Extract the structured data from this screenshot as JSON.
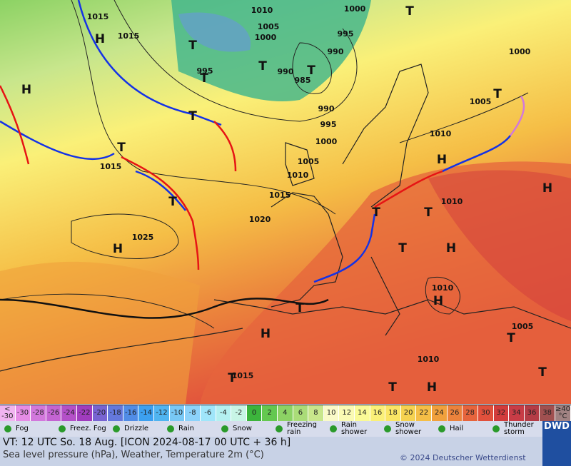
{
  "map": {
    "pressure_labels": [
      "1015",
      "1015",
      "1010",
      "1005",
      "1000",
      "1000",
      "995",
      "990",
      "990",
      "985",
      "995",
      "990",
      "995",
      "1000",
      "1005",
      "1010",
      "1015",
      "1015",
      "1020",
      "1025",
      "1010",
      "1005",
      "1010",
      "1000",
      "1010",
      "1005",
      "1010",
      "1015"
    ],
    "highs": [
      "H",
      "H",
      "H",
      "H",
      "H",
      "H",
      "H",
      "H",
      "H"
    ],
    "lows": [
      "T",
      "T",
      "T",
      "T",
      "T",
      "T",
      "T",
      "T",
      "T",
      "T",
      "T",
      "T",
      "T",
      "T",
      "T",
      "T",
      "T"
    ]
  },
  "legend": {
    "scale": {
      "below": "<",
      "ticks": [
        -30,
        -28,
        -26,
        -24,
        -22,
        -20,
        -18,
        -16,
        -14,
        -12,
        -10,
        -8,
        -6,
        -4,
        -2,
        0,
        2,
        4,
        6,
        8,
        10,
        12,
        14,
        16,
        18,
        20,
        22,
        24,
        26,
        28,
        30,
        32,
        34,
        36,
        38
      ],
      "above": "≥40",
      "unit": "°C",
      "colors": [
        "#f0b4f0",
        "#e68ce6",
        "#d278dc",
        "#c364d2",
        "#b450c8",
        "#a03cbe",
        "#7864d2",
        "#6478dc",
        "#508ce6",
        "#3ca0f0",
        "#50b4f0",
        "#78c8f5",
        "#8cd2fa",
        "#a0e6fa",
        "#b4f0f0",
        "#c8f5e6",
        "#3cb43c",
        "#64c850",
        "#8cd264",
        "#aadc78",
        "#c8e68c",
        "#fafac8",
        "#fafab4",
        "#fafa96",
        "#faf078",
        "#fae664",
        "#f5d250",
        "#f5be46",
        "#f0a03c",
        "#eb823c",
        "#e6643c",
        "#e1503c",
        "#d23c3c",
        "#c83c46",
        "#b43c46",
        "#a05050",
        "#a08282"
      ]
    },
    "weather": [
      "Fog",
      "Freez. Fog",
      "Drizzle",
      "Rain",
      "Snow",
      "Freezing rain",
      "Rain shower",
      "Snow shower",
      "Hail",
      "Thunder storm"
    ]
  },
  "footer": {
    "valid": "VT: 12 UTC So.   18 Aug. [ICON 2024-08-17  00 UTC + 36 h]",
    "description": "Sea level pressure (hPa), Weather, Temperature 2m (°C)",
    "copyright": "© 2024 Deutscher Wetterdienst",
    "logo": "DWD"
  }
}
